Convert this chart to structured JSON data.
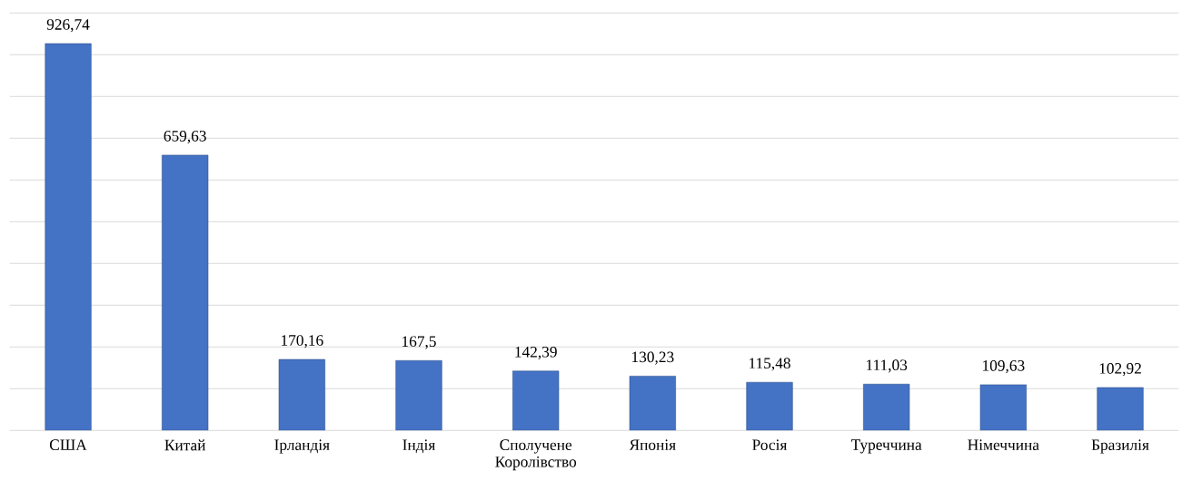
{
  "chart_data": {
    "type": "bar",
    "categories": [
      "США",
      "Китай",
      "Ірландія",
      "Індія",
      "Сполучене Королівство",
      "Японія",
      "Росія",
      "Туреччина",
      "Німеччина",
      "Бразилія"
    ],
    "values": [
      926.74,
      659.63,
      170.16,
      167.5,
      142.39,
      130.23,
      115.48,
      111.03,
      109.63,
      102.92
    ],
    "value_labels": [
      "926,74",
      "659,63",
      "170,16",
      "167,5",
      "142,39",
      "130,23",
      "115,48",
      "111,03",
      "109,63",
      "102,92"
    ],
    "color": "#4472c4",
    "ylim": [
      0,
      1000
    ],
    "yticks": [
      {
        "value": 0,
        "label": null
      },
      {
        "value": 100,
        "label": null
      },
      {
        "value": 200,
        "label": null
      },
      {
        "value": 300,
        "label": null
      },
      {
        "value": 400,
        "label": null
      },
      {
        "value": 500,
        "label": null
      },
      {
        "value": 600,
        "label": null
      },
      {
        "value": 700,
        "label": null
      },
      {
        "value": 800,
        "label": null
      },
      {
        "value": 900,
        "label": null
      },
      {
        "value": 1000,
        "label": null
      }
    ],
    "grid": "y",
    "tick_labels": "x"
  }
}
